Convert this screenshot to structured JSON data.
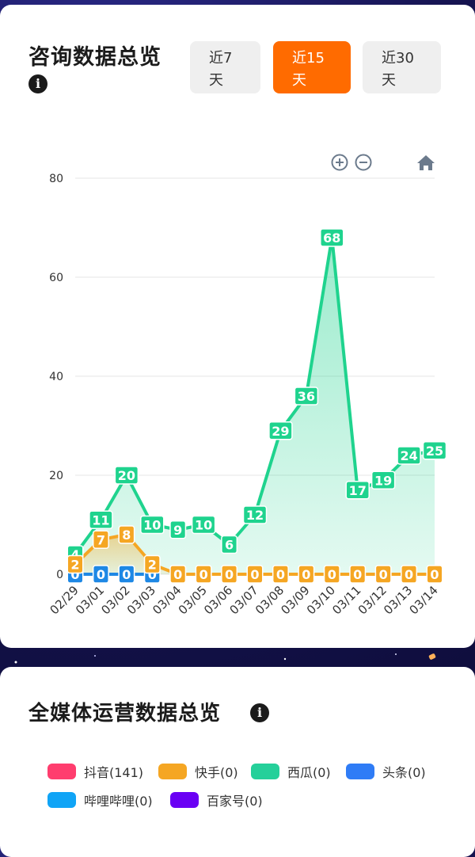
{
  "consult": {
    "title": "咨询数据总览",
    "info_icon": "info-icon",
    "ranges": [
      {
        "label": "近7\n天",
        "active": false
      },
      {
        "label": "近15\n天",
        "active": true
      },
      {
        "label": "近30\n天",
        "active": false
      }
    ],
    "toolbar_icons": [
      "zoom-in-icon",
      "zoom-out-icon",
      "home-icon"
    ]
  },
  "chart_data": {
    "type": "area",
    "categories": [
      "02/29",
      "03/01",
      "03/02",
      "03/03",
      "03/04",
      "03/05",
      "03/06",
      "03/07",
      "03/08",
      "03/09",
      "03/10",
      "03/11",
      "03/12",
      "03/13",
      "03/14"
    ],
    "ylim": [
      0,
      80
    ],
    "yticks": [
      "0",
      "20",
      "40",
      "60",
      "80"
    ],
    "grid": true,
    "series": [
      {
        "key": "xigua",
        "color": "#1fd38e",
        "values": [
          4,
          11,
          20,
          10,
          9,
          10,
          6,
          12,
          29,
          36,
          68,
          17,
          19,
          24,
          25
        ]
      },
      {
        "key": "kuaishou",
        "color": "#f5a623",
        "values": [
          2,
          7,
          8,
          2,
          0,
          0,
          0,
          0,
          0,
          0,
          0,
          0,
          0,
          0,
          0
        ]
      },
      {
        "key": "toutiao",
        "color": "#1e88e5",
        "values": [
          0,
          0,
          0,
          0,
          null,
          null,
          null,
          null,
          null,
          null,
          null,
          null,
          null,
          null,
          null
        ]
      }
    ]
  },
  "media": {
    "title": "全媒体运营数据总览",
    "info_icon": "info-icon",
    "legend": [
      {
        "label": "抖音(141)",
        "color": "#ff3d6e"
      },
      {
        "label": "快手(0)",
        "color": "#f5a623"
      },
      {
        "label": "西瓜(0)",
        "color": "#25d09a"
      },
      {
        "label": "头条(0)",
        "color": "#2f7cf6"
      },
      {
        "label": "哔哩哔哩(0)",
        "color": "#10a4f6"
      },
      {
        "label": "百家号(0)",
        "color": "#6a00f4"
      }
    ]
  }
}
